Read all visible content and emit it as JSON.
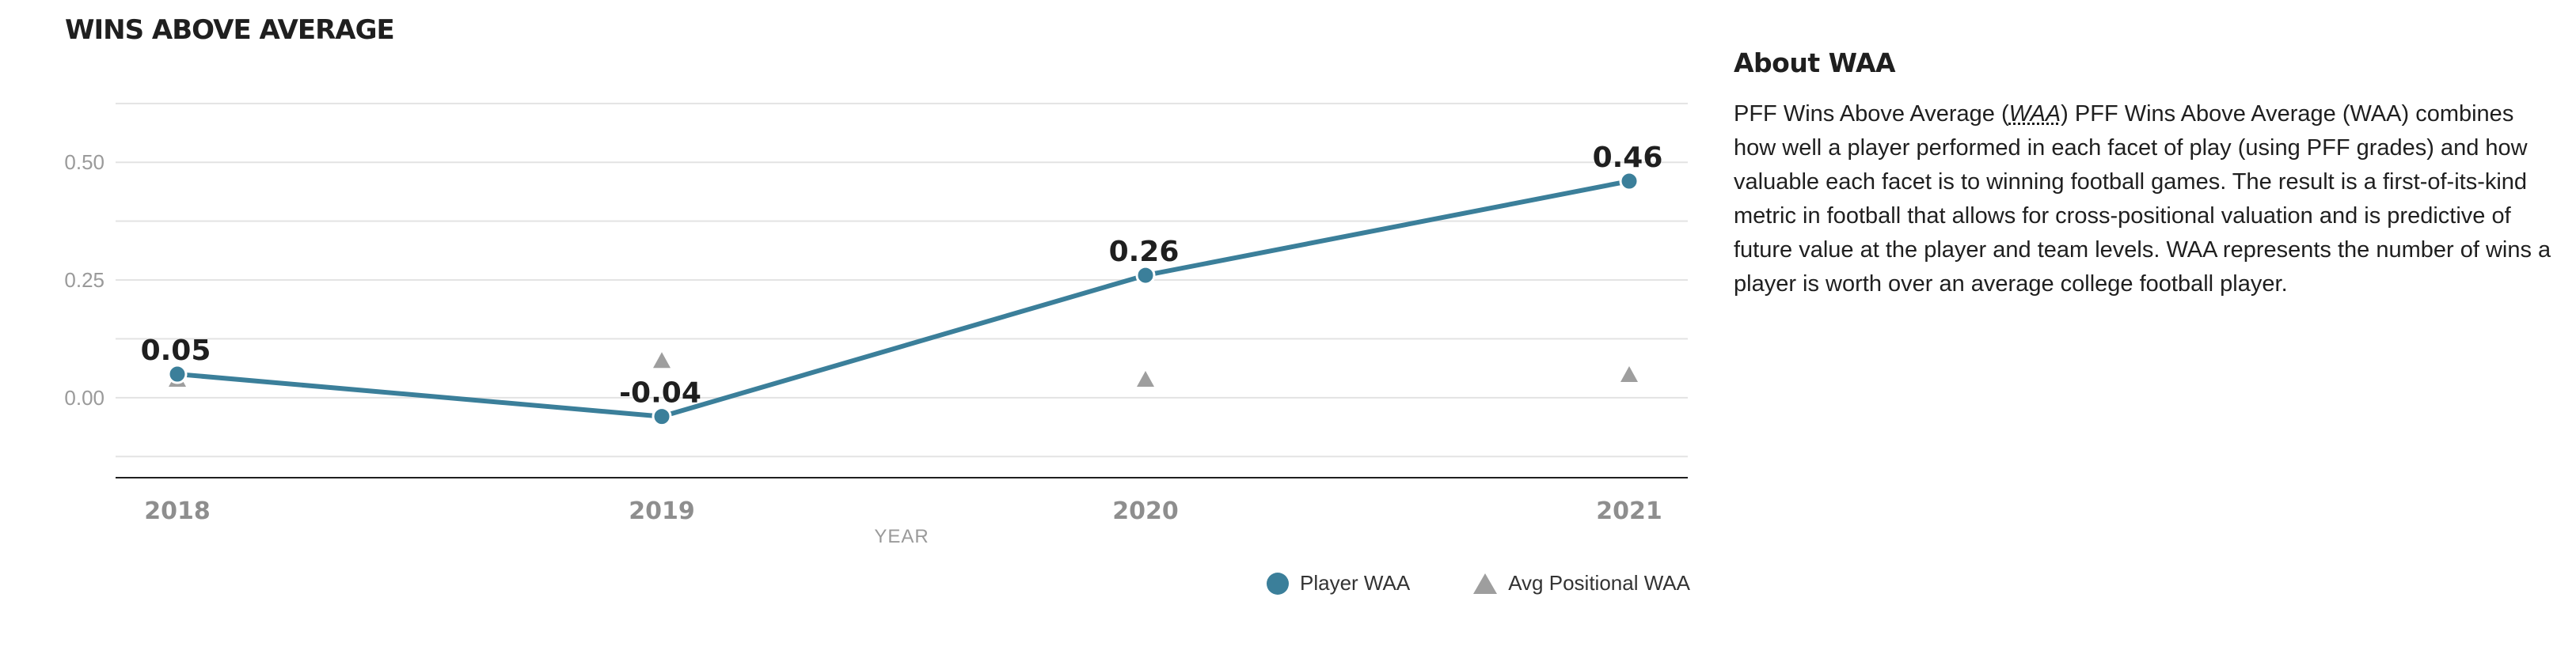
{
  "chart_title": "WINS ABOVE AVERAGE",
  "colors": {
    "player": "#3b7f9a",
    "avg": "#9e9e9e"
  },
  "chart_data": {
    "type": "line",
    "categories": [
      "2018",
      "2019",
      "2020",
      "2021"
    ],
    "series": [
      {
        "name": "Player WAA",
        "values": [
          0.05,
          -0.04,
          0.26,
          0.46
        ],
        "data_labels": [
          "0.05",
          "-0.04",
          "0.26",
          "0.46"
        ]
      },
      {
        "name": "Avg Positional WAA",
        "values": [
          0.04,
          0.08,
          0.04,
          0.05
        ]
      }
    ],
    "xlabel": "YEAR",
    "ylabel": "",
    "yticks": [
      "0.00",
      "0.25",
      "0.50"
    ],
    "ytick_values": [
      0,
      0.25,
      0.5
    ],
    "ylim": [
      -0.17,
      0.66
    ],
    "grid": true,
    "legend": "bottom-right"
  },
  "legend": {
    "player_label": "Player WAA",
    "avg_label": "Avg Positional WAA"
  },
  "about": {
    "title": "About WAA",
    "lead": "PFF Wins Above Average (",
    "abbr": "WAA",
    "body": ") PFF Wins Above Average (WAA) combines how well a player performed in each facet of play (using PFF grades) and how valuable each facet is to winning football games. The result is a first-of-its-kind metric in football that allows for cross-positional valuation and is predictive of future value at the player and team levels. WAA represents the number of wins a player is worth over an average college football player."
  }
}
